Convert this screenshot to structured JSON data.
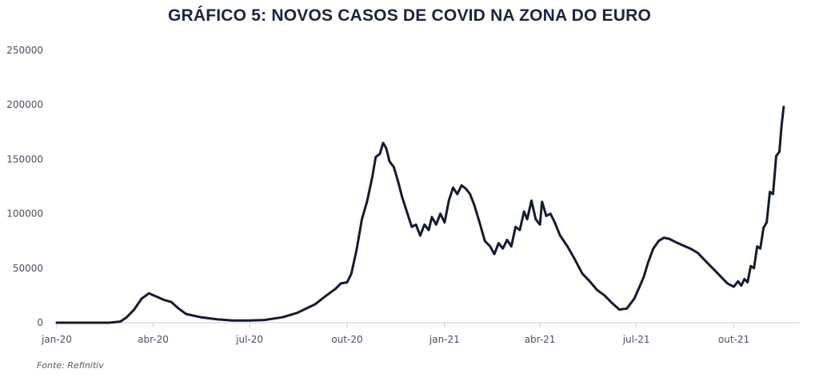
{
  "source": "Fonte: Refinitiv",
  "chart_data": {
    "type": "line",
    "title": "GRÁFICO 5: NOVOS CASOS DE COVID NA ZONA DO EURO",
    "xlabel": "",
    "ylabel": "",
    "ylim": [
      0,
      250000
    ],
    "yticks": [
      "0",
      "50000",
      "100000",
      "150000",
      "200000",
      "250000"
    ],
    "xticks": [
      {
        "label": "jan-20",
        "date": "2020-01-01"
      },
      {
        "label": "abr-20",
        "date": "2020-04-01"
      },
      {
        "label": "jul-20",
        "date": "2020-07-01"
      },
      {
        "label": "out-20",
        "date": "2020-10-01"
      },
      {
        "label": "jan-21",
        "date": "2021-01-01"
      },
      {
        "label": "abr-21",
        "date": "2021-04-01"
      },
      {
        "label": "jul-21",
        "date": "2021-07-01"
      },
      {
        "label": "out-21",
        "date": "2021-10-01"
      }
    ],
    "xlim": [
      "2020-01-01",
      "2021-11-30"
    ],
    "grid": false,
    "series": [
      {
        "color": "#141a33",
        "points": [
          [
            "2020-01-01",
            0
          ],
          [
            "2020-02-20",
            0
          ],
          [
            "2020-03-01",
            1000
          ],
          [
            "2020-03-07",
            5000
          ],
          [
            "2020-03-14",
            12000
          ],
          [
            "2020-03-21",
            22000
          ],
          [
            "2020-03-28",
            27000
          ],
          [
            "2020-04-04",
            24000
          ],
          [
            "2020-04-11",
            21000
          ],
          [
            "2020-04-18",
            19000
          ],
          [
            "2020-04-25",
            13000
          ],
          [
            "2020-05-02",
            8000
          ],
          [
            "2020-05-16",
            5000
          ],
          [
            "2020-06-01",
            3000
          ],
          [
            "2020-06-15",
            2000
          ],
          [
            "2020-07-01",
            2000
          ],
          [
            "2020-07-15",
            2500
          ],
          [
            "2020-08-01",
            5000
          ],
          [
            "2020-08-15",
            9000
          ],
          [
            "2020-09-01",
            17000
          ],
          [
            "2020-09-10",
            24000
          ],
          [
            "2020-09-20",
            31000
          ],
          [
            "2020-09-25",
            36000
          ],
          [
            "2020-10-01",
            37000
          ],
          [
            "2020-10-05",
            45000
          ],
          [
            "2020-10-10",
            67000
          ],
          [
            "2020-10-15",
            95000
          ],
          [
            "2020-10-20",
            112000
          ],
          [
            "2020-10-25",
            135000
          ],
          [
            "2020-10-28",
            152000
          ],
          [
            "2020-11-01",
            155000
          ],
          [
            "2020-11-04",
            165000
          ],
          [
            "2020-11-07",
            160000
          ],
          [
            "2020-11-10",
            148000
          ],
          [
            "2020-11-14",
            143000
          ],
          [
            "2020-11-18",
            130000
          ],
          [
            "2020-11-22",
            115000
          ],
          [
            "2020-11-27",
            100000
          ],
          [
            "2020-12-01",
            88000
          ],
          [
            "2020-12-05",
            90000
          ],
          [
            "2020-12-09",
            80000
          ],
          [
            "2020-12-13",
            90000
          ],
          [
            "2020-12-17",
            85000
          ],
          [
            "2020-12-20",
            97000
          ],
          [
            "2020-12-24",
            90000
          ],
          [
            "2020-12-28",
            100000
          ],
          [
            "2021-01-01",
            92000
          ],
          [
            "2021-01-05",
            112000
          ],
          [
            "2021-01-09",
            124000
          ],
          [
            "2021-01-13",
            118000
          ],
          [
            "2021-01-17",
            126000
          ],
          [
            "2021-01-21",
            123000
          ],
          [
            "2021-01-25",
            118000
          ],
          [
            "2021-01-29",
            108000
          ],
          [
            "2021-02-03",
            92000
          ],
          [
            "2021-02-08",
            75000
          ],
          [
            "2021-02-13",
            70000
          ],
          [
            "2021-02-17",
            63000
          ],
          [
            "2021-02-21",
            73000
          ],
          [
            "2021-02-25",
            68000
          ],
          [
            "2021-03-01",
            76000
          ],
          [
            "2021-03-05",
            70000
          ],
          [
            "2021-03-09",
            88000
          ],
          [
            "2021-03-13",
            85000
          ],
          [
            "2021-03-17",
            102000
          ],
          [
            "2021-03-20",
            95000
          ],
          [
            "2021-03-24",
            112000
          ],
          [
            "2021-03-28",
            95000
          ],
          [
            "2021-04-01",
            90000
          ],
          [
            "2021-04-03",
            111000
          ],
          [
            "2021-04-07",
            98000
          ],
          [
            "2021-04-11",
            100000
          ],
          [
            "2021-04-15",
            92000
          ],
          [
            "2021-04-20",
            80000
          ],
          [
            "2021-04-27",
            70000
          ],
          [
            "2021-05-04",
            58000
          ],
          [
            "2021-05-11",
            45000
          ],
          [
            "2021-05-18",
            38000
          ],
          [
            "2021-05-25",
            30000
          ],
          [
            "2021-06-01",
            25000
          ],
          [
            "2021-06-08",
            18000
          ],
          [
            "2021-06-15",
            12000
          ],
          [
            "2021-06-22",
            13000
          ],
          [
            "2021-06-29",
            22000
          ],
          [
            "2021-07-04",
            33000
          ],
          [
            "2021-07-08",
            42000
          ],
          [
            "2021-07-12",
            55000
          ],
          [
            "2021-07-17",
            68000
          ],
          [
            "2021-07-22",
            75000
          ],
          [
            "2021-07-27",
            78000
          ],
          [
            "2021-08-01",
            77000
          ],
          [
            "2021-08-07",
            74000
          ],
          [
            "2021-08-14",
            71000
          ],
          [
            "2021-08-21",
            68000
          ],
          [
            "2021-08-28",
            64000
          ],
          [
            "2021-09-04",
            57000
          ],
          [
            "2021-09-11",
            50000
          ],
          [
            "2021-09-18",
            43000
          ],
          [
            "2021-09-25",
            36000
          ],
          [
            "2021-10-01",
            33000
          ],
          [
            "2021-10-05",
            38000
          ],
          [
            "2021-10-08",
            34000
          ],
          [
            "2021-10-11",
            40000
          ],
          [
            "2021-10-14",
            37000
          ],
          [
            "2021-10-17",
            52000
          ],
          [
            "2021-10-20",
            50000
          ],
          [
            "2021-10-23",
            70000
          ],
          [
            "2021-10-26",
            68000
          ],
          [
            "2021-10-29",
            87000
          ],
          [
            "2021-11-01",
            92000
          ],
          [
            "2021-11-04",
            120000
          ],
          [
            "2021-11-07",
            118000
          ],
          [
            "2021-11-10",
            153000
          ],
          [
            "2021-11-13",
            157000
          ],
          [
            "2021-11-15",
            180000
          ],
          [
            "2021-11-17",
            198000
          ]
        ]
      }
    ]
  }
}
